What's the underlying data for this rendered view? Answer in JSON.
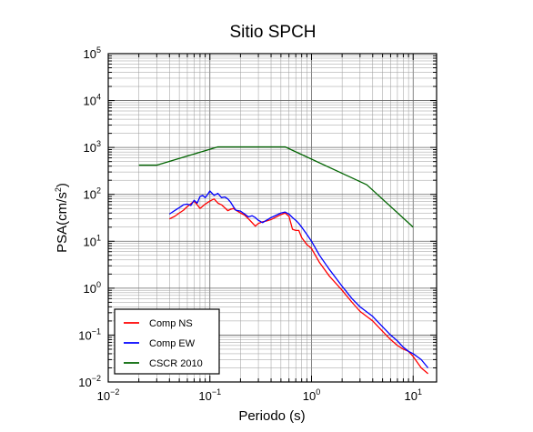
{
  "chart_data": {
    "type": "line",
    "title": "Sitio SPCH",
    "xlabel": "Periodo (s)",
    "ylabel": "PSA(cm/s",
    "ylabel_sup": "2",
    "ylabel_tail": ")",
    "xscale": "log",
    "yscale": "log",
    "xlim": [
      0.01,
      17
    ],
    "ylim": [
      0.01,
      100000
    ],
    "grid": true,
    "legend_position": "bottom-left",
    "x_ticks": [
      {
        "value": 0.01,
        "base": "10",
        "exp": "−2"
      },
      {
        "value": 0.1,
        "base": "10",
        "exp": "−1"
      },
      {
        "value": 1,
        "base": "10",
        "exp": "0"
      },
      {
        "value": 10,
        "base": "10",
        "exp": "1"
      }
    ],
    "y_ticks": [
      {
        "value": 0.01,
        "base": "10",
        "exp": "−2"
      },
      {
        "value": 0.1,
        "base": "10",
        "exp": "−1"
      },
      {
        "value": 1,
        "base": "10",
        "exp": "0"
      },
      {
        "value": 10,
        "base": "10",
        "exp": "1"
      },
      {
        "value": 100,
        "base": "10",
        "exp": "2"
      },
      {
        "value": 1000,
        "base": "10",
        "exp": "3"
      },
      {
        "value": 10000,
        "base": "10",
        "exp": "4"
      },
      {
        "value": 100000,
        "base": "10",
        "exp": "5"
      }
    ],
    "series": [
      {
        "name": "Comp NS",
        "color": "#ff0000",
        "points": [
          [
            0.04,
            30
          ],
          [
            0.045,
            34
          ],
          [
            0.05,
            40
          ],
          [
            0.055,
            46
          ],
          [
            0.06,
            55
          ],
          [
            0.065,
            63
          ],
          [
            0.07,
            72
          ],
          [
            0.075,
            60
          ],
          [
            0.08,
            50
          ],
          [
            0.09,
            62
          ],
          [
            0.1,
            72
          ],
          [
            0.11,
            80
          ],
          [
            0.12,
            65
          ],
          [
            0.13,
            60
          ],
          [
            0.14,
            52
          ],
          [
            0.15,
            45
          ],
          [
            0.16,
            48
          ],
          [
            0.17,
            50
          ],
          [
            0.18,
            46
          ],
          [
            0.2,
            40
          ],
          [
            0.22,
            36
          ],
          [
            0.24,
            30
          ],
          [
            0.26,
            25
          ],
          [
            0.28,
            21
          ],
          [
            0.3,
            24
          ],
          [
            0.33,
            26
          ],
          [
            0.36,
            27
          ],
          [
            0.4,
            29
          ],
          [
            0.45,
            33
          ],
          [
            0.5,
            37
          ],
          [
            0.55,
            40
          ],
          [
            0.6,
            34
          ],
          [
            0.65,
            18
          ],
          [
            0.7,
            17
          ],
          [
            0.75,
            17
          ],
          [
            0.8,
            12
          ],
          [
            0.85,
            10
          ],
          [
            0.9,
            8.5
          ],
          [
            1,
            7
          ],
          [
            1.2,
            3.5
          ],
          [
            1.5,
            1.8
          ],
          [
            2,
            0.9
          ],
          [
            2.5,
            0.5
          ],
          [
            3,
            0.32
          ],
          [
            4,
            0.2
          ],
          [
            5,
            0.12
          ],
          [
            6,
            0.08
          ],
          [
            7,
            0.06
          ],
          [
            8,
            0.05
          ],
          [
            9,
            0.045
          ],
          [
            10,
            0.035
          ],
          [
            12,
            0.02
          ],
          [
            14,
            0.015
          ]
        ]
      },
      {
        "name": "Comp EW",
        "color": "#0000ff",
        "points": [
          [
            0.04,
            38
          ],
          [
            0.045,
            45
          ],
          [
            0.05,
            52
          ],
          [
            0.055,
            60
          ],
          [
            0.06,
            62
          ],
          [
            0.065,
            58
          ],
          [
            0.07,
            75
          ],
          [
            0.075,
            65
          ],
          [
            0.08,
            90
          ],
          [
            0.085,
            95
          ],
          [
            0.09,
            85
          ],
          [
            0.095,
            100
          ],
          [
            0.1,
            118
          ],
          [
            0.11,
            95
          ],
          [
            0.12,
            105
          ],
          [
            0.13,
            85
          ],
          [
            0.14,
            88
          ],
          [
            0.15,
            80
          ],
          [
            0.16,
            68
          ],
          [
            0.17,
            55
          ],
          [
            0.18,
            46
          ],
          [
            0.2,
            44
          ],
          [
            0.22,
            38
          ],
          [
            0.24,
            33
          ],
          [
            0.26,
            35
          ],
          [
            0.28,
            32
          ],
          [
            0.3,
            28
          ],
          [
            0.33,
            25
          ],
          [
            0.36,
            28
          ],
          [
            0.4,
            32
          ],
          [
            0.45,
            36
          ],
          [
            0.5,
            40
          ],
          [
            0.55,
            42
          ],
          [
            0.6,
            38
          ],
          [
            0.65,
            32
          ],
          [
            0.7,
            28
          ],
          [
            0.75,
            24
          ],
          [
            0.8,
            20
          ],
          [
            0.9,
            14
          ],
          [
            1,
            10
          ],
          [
            1.2,
            5
          ],
          [
            1.5,
            2.5
          ],
          [
            2,
            1.1
          ],
          [
            2.5,
            0.6
          ],
          [
            3,
            0.4
          ],
          [
            4,
            0.25
          ],
          [
            5,
            0.15
          ],
          [
            6,
            0.1
          ],
          [
            7,
            0.075
          ],
          [
            8,
            0.055
          ],
          [
            9,
            0.045
          ],
          [
            10,
            0.04
          ],
          [
            12,
            0.03
          ],
          [
            14,
            0.02
          ]
        ]
      },
      {
        "name": "CSCR 2010",
        "color": "#006400",
        "points": [
          [
            0.02,
            420
          ],
          [
            0.03,
            420
          ],
          [
            0.12,
            1030
          ],
          [
            0.55,
            1030
          ],
          [
            3.5,
            160
          ],
          [
            10,
            20
          ]
        ]
      }
    ]
  }
}
